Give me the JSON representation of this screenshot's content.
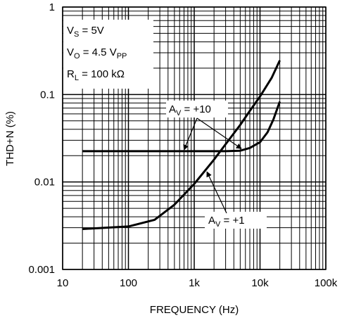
{
  "chart_data": {
    "type": "line",
    "xlabel": "FREQUENCY (Hz)",
    "ylabel": "THD+N (%)",
    "xscale": "log",
    "yscale": "log",
    "xlim": [
      10,
      100000
    ],
    "ylim": [
      0.001,
      1
    ],
    "grid": true,
    "x_ticks": [
      {
        "value": 10,
        "label": "10"
      },
      {
        "value": 100,
        "label": "100"
      },
      {
        "value": 1000,
        "label": "1k"
      },
      {
        "value": 10000,
        "label": "10k"
      },
      {
        "value": 100000,
        "label": "100k"
      }
    ],
    "y_ticks": [
      {
        "value": 0.001,
        "label": "0.001"
      },
      {
        "value": 0.01,
        "label": "0.01"
      },
      {
        "value": 0.1,
        "label": "0.1"
      },
      {
        "value": 1,
        "label": "1"
      }
    ],
    "conditions": [
      {
        "main": "V",
        "sub": "S",
        "rest": " = 5V"
      },
      {
        "main": "V",
        "sub": "O",
        "rest": " = 4.5 V",
        "sub2": "PP"
      },
      {
        "main": "R",
        "sub": "L",
        "rest": " = 100 kΩ"
      }
    ],
    "series": [
      {
        "label": {
          "main": "A",
          "sub": "V",
          "rest": " = +10"
        },
        "x": [
          20,
          100,
          1000,
          3000,
          5000,
          7000,
          10000,
          13000,
          16000,
          20000
        ],
        "y": [
          0.0225,
          0.0225,
          0.0225,
          0.0225,
          0.0228,
          0.0245,
          0.0285,
          0.037,
          0.052,
          0.083
        ]
      },
      {
        "label": {
          "main": "A",
          "sub": "V",
          "rest": " = +1"
        },
        "x": [
          20,
          100,
          250,
          500,
          1000,
          2000,
          3000,
          5000,
          7000,
          10000,
          15000,
          20000
        ],
        "y": [
          0.0029,
          0.0031,
          0.0037,
          0.0055,
          0.0095,
          0.018,
          0.027,
          0.045,
          0.065,
          0.095,
          0.155,
          0.245
        ]
      }
    ]
  }
}
